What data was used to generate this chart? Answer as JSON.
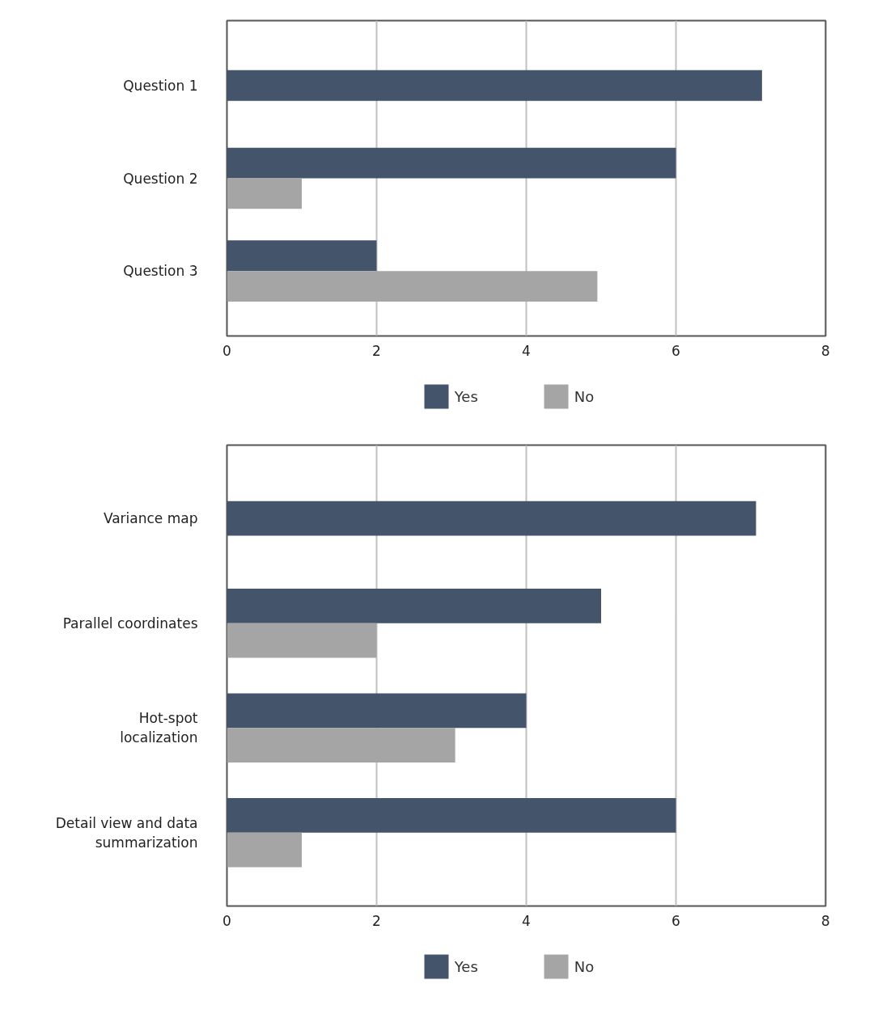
{
  "chart_data": [
    {
      "type": "bar",
      "orientation": "horizontal",
      "categories": [
        "Question 1",
        "Question 2",
        "Question 3"
      ],
      "series": [
        {
          "name": "Yes",
          "color": "#44546a",
          "values": [
            7.15,
            6,
            2
          ]
        },
        {
          "name": "No",
          "color": "#a5a5a5",
          "values": [
            null,
            1,
            4.95
          ]
        }
      ],
      "xlim": [
        0,
        8
      ],
      "xticks": [
        0,
        2,
        4,
        6,
        8
      ],
      "grid": "x",
      "legend": "bottom"
    },
    {
      "type": "bar",
      "orientation": "horizontal",
      "categories": [
        "Variance map",
        "Parallel coordinates",
        "Hot-spot localization",
        "Detail view and data summarization"
      ],
      "series": [
        {
          "name": "Yes",
          "color": "#44546a",
          "values": [
            7.07,
            5,
            4,
            6
          ]
        },
        {
          "name": "No",
          "color": "#a5a5a5",
          "values": [
            null,
            2,
            3.05,
            1
          ]
        }
      ],
      "xlim": [
        0,
        8
      ],
      "xticks": [
        0,
        2,
        4,
        6,
        8
      ],
      "grid": "x",
      "legend": "bottom"
    }
  ]
}
